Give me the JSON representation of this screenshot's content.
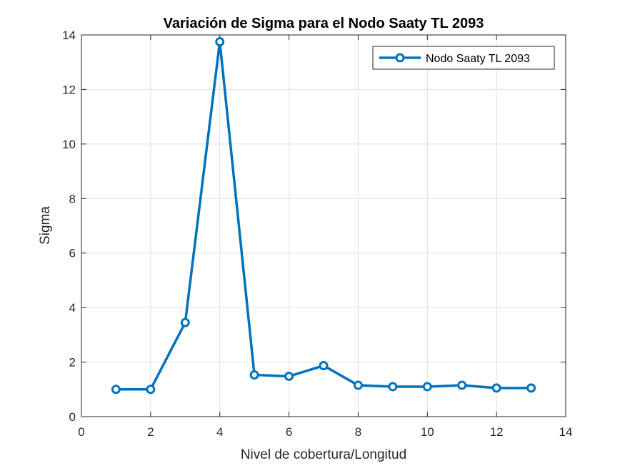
{
  "chart_data": {
    "type": "line",
    "title": "Variación de Sigma para el Nodo Saaty TL 2093",
    "xlabel": "Nivel de cobertura/Longitud",
    "ylabel": "Sigma",
    "xlim": [
      0,
      14
    ],
    "ylim": [
      0,
      14
    ],
    "xticks": [
      0,
      2,
      4,
      6,
      8,
      10,
      12,
      14
    ],
    "yticks": [
      0,
      2,
      4,
      6,
      8,
      10,
      12,
      14
    ],
    "grid": true,
    "legend_position": "top-right",
    "series": [
      {
        "name": "Nodo Saaty TL 2093",
        "color": "#0072BD",
        "marker": "circle",
        "x": [
          1,
          2,
          3,
          4,
          5,
          6,
          7,
          8,
          9,
          10,
          11,
          12,
          13
        ],
        "y": [
          1.0,
          1.0,
          3.45,
          13.75,
          1.53,
          1.48,
          1.87,
          1.15,
          1.1,
          1.1,
          1.15,
          1.05,
          1.05
        ]
      }
    ]
  }
}
